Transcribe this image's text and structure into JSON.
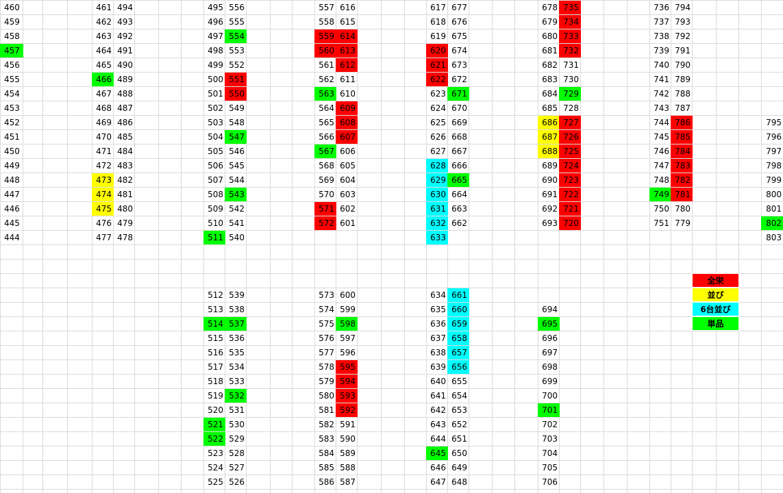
{
  "colors": {
    "red": "#ff0000",
    "yellow": "#ffff00",
    "cyan": "#00ffff",
    "green": "#00ff00",
    "grid": "#dadada"
  },
  "legend": [
    {
      "label": "全栄",
      "color": "red"
    },
    {
      "label": "並び",
      "color": "yellow"
    },
    {
      "label": "6台並び",
      "color": "cyan"
    },
    {
      "label": "単品",
      "color": "green"
    }
  ],
  "blocks": [
    {
      "col": 0,
      "row": 0,
      "values": [
        460,
        459,
        458,
        457,
        456,
        455,
        454,
        453,
        452,
        451,
        450,
        449,
        448,
        447,
        446,
        445,
        444
      ],
      "fills": {
        "457": "green"
      }
    },
    {
      "col": 4,
      "row": 0,
      "values": [
        461,
        462,
        463,
        464,
        465,
        466,
        467,
        468,
        469,
        470,
        471,
        472,
        473,
        474,
        475,
        476,
        477
      ],
      "fills": {
        "466": "green",
        "473": "yellow",
        "474": "yellow",
        "475": "yellow"
      }
    },
    {
      "col": 5,
      "row": 0,
      "values": [
        494,
        493,
        492,
        491,
        490,
        489,
        488,
        487,
        486,
        485,
        484,
        483,
        482,
        481,
        480,
        479,
        478
      ],
      "fills": {}
    },
    {
      "col": 9,
      "row": 0,
      "values": [
        495,
        496,
        497,
        498,
        499,
        500,
        501,
        502,
        503,
        504,
        505,
        506,
        507,
        508,
        509,
        510,
        511
      ],
      "fills": {
        "511": "green"
      }
    },
    {
      "col": 10,
      "row": 0,
      "values": [
        556,
        555,
        554,
        553,
        552,
        551,
        550,
        549,
        548,
        547,
        546,
        545,
        544,
        543,
        542,
        541,
        540
      ],
      "fills": {
        "554": "green",
        "551": "red",
        "550": "red",
        "547": "green",
        "543": "green"
      }
    },
    {
      "col": 14,
      "row": 0,
      "values": [
        557,
        558,
        559,
        560,
        561,
        562,
        563,
        564,
        565,
        566,
        567,
        568,
        569,
        570,
        571,
        572
      ],
      "fills": {
        "559": "red",
        "560": "red",
        "563": "green",
        "567": "green",
        "571": "red",
        "572": "red"
      }
    },
    {
      "col": 15,
      "row": 0,
      "values": [
        616,
        615,
        614,
        613,
        612,
        611,
        610,
        609,
        608,
        607,
        606,
        605,
        604,
        603,
        602,
        601
      ],
      "fills": {
        "614": "red",
        "613": "red",
        "612": "red",
        "609": "red",
        "608": "red",
        "607": "red"
      }
    },
    {
      "col": 19,
      "row": 0,
      "values": [
        617,
        618,
        619,
        620,
        621,
        622,
        623,
        624,
        625,
        626,
        627,
        628,
        629,
        630,
        631,
        632,
        633
      ],
      "fills": {
        "620": "red",
        "621": "red",
        "622": "red",
        "628": "cyan",
        "629": "cyan",
        "630": "cyan",
        "631": "cyan",
        "632": "cyan",
        "633": "cyan"
      }
    },
    {
      "col": 20,
      "row": 0,
      "values": [
        677,
        676,
        675,
        674,
        673,
        672,
        671,
        670,
        669,
        668,
        667,
        666,
        665,
        664,
        663,
        662
      ],
      "fills": {
        "671": "green",
        "665": "green"
      }
    },
    {
      "col": 24,
      "row": 0,
      "values": [
        678,
        679,
        680,
        681,
        682,
        683,
        684,
        685,
        686,
        687,
        688,
        689,
        690,
        691,
        692,
        693
      ],
      "fills": {
        "686": "yellow",
        "687": "yellow",
        "688": "yellow"
      }
    },
    {
      "col": 25,
      "row": 0,
      "values": [
        735,
        734,
        733,
        732,
        731,
        730,
        729,
        728,
        727,
        726,
        725,
        724,
        723,
        722,
        721,
        720
      ],
      "fills": {
        "735": "red",
        "734": "red",
        "733": "red",
        "732": "red",
        "729": "green",
        "727": "red",
        "726": "red",
        "725": "red",
        "724": "red",
        "723": "red",
        "722": "red",
        "721": "red",
        "720": "red"
      }
    },
    {
      "col": 29,
      "row": 0,
      "values": [
        736,
        737,
        738,
        739,
        740,
        741,
        742,
        743,
        744,
        745,
        746,
        747,
        748,
        749,
        750,
        751
      ],
      "fills": {
        "749": "green"
      }
    },
    {
      "col": 30,
      "row": 0,
      "values": [
        794,
        793,
        792,
        791,
        790,
        789,
        788,
        787,
        786,
        785,
        784,
        783,
        782,
        781,
        780,
        779
      ],
      "fills": {
        "786": "red",
        "785": "red",
        "784": "red",
        "783": "red",
        "782": "red",
        "781": "red"
      }
    },
    {
      "col": 34,
      "row": 8,
      "values": [
        795,
        796,
        797,
        798,
        799,
        800,
        801,
        802,
        803
      ],
      "fills": {
        "802": "green"
      }
    },
    {
      "col": 9,
      "row": 20,
      "values": [
        512,
        513,
        514,
        515,
        516,
        517,
        518,
        519,
        520,
        521,
        522,
        523,
        524,
        525
      ],
      "fills": {
        "514": "green",
        "521": "green",
        "522": "green"
      }
    },
    {
      "col": 10,
      "row": 20,
      "values": [
        539,
        538,
        537,
        536,
        535,
        534,
        533,
        532,
        531,
        530,
        529,
        528,
        527,
        526
      ],
      "fills": {
        "537": "green",
        "532": "green"
      }
    },
    {
      "col": 14,
      "row": 20,
      "values": [
        573,
        574,
        575,
        576,
        577,
        578,
        579,
        580,
        581,
        582,
        583,
        584,
        585,
        586
      ],
      "fills": {}
    },
    {
      "col": 15,
      "row": 20,
      "values": [
        600,
        599,
        598,
        597,
        596,
        595,
        594,
        593,
        592,
        591,
        590,
        589,
        588,
        587
      ],
      "fills": {
        "598": "green",
        "595": "red",
        "594": "red",
        "593": "red",
        "592": "red"
      }
    },
    {
      "col": 19,
      "row": 20,
      "values": [
        634,
        635,
        636,
        637,
        638,
        639,
        640,
        641,
        642,
        643,
        644,
        645,
        646,
        647
      ],
      "fills": {
        "645": "green"
      }
    },
    {
      "col": 20,
      "row": 20,
      "values": [
        661,
        660,
        659,
        658,
        657,
        656,
        655,
        654,
        653,
        652,
        651,
        650,
        649,
        648
      ],
      "fills": {
        "661": "cyan",
        "660": "cyan",
        "659": "cyan",
        "658": "cyan",
        "657": "cyan",
        "656": "cyan"
      }
    },
    {
      "col": 24,
      "row": 21,
      "values": [
        694,
        695,
        696,
        697,
        698,
        699,
        700,
        701,
        702,
        703,
        704,
        705,
        706
      ],
      "fills": {
        "695": "green",
        "701": "green"
      }
    }
  ]
}
